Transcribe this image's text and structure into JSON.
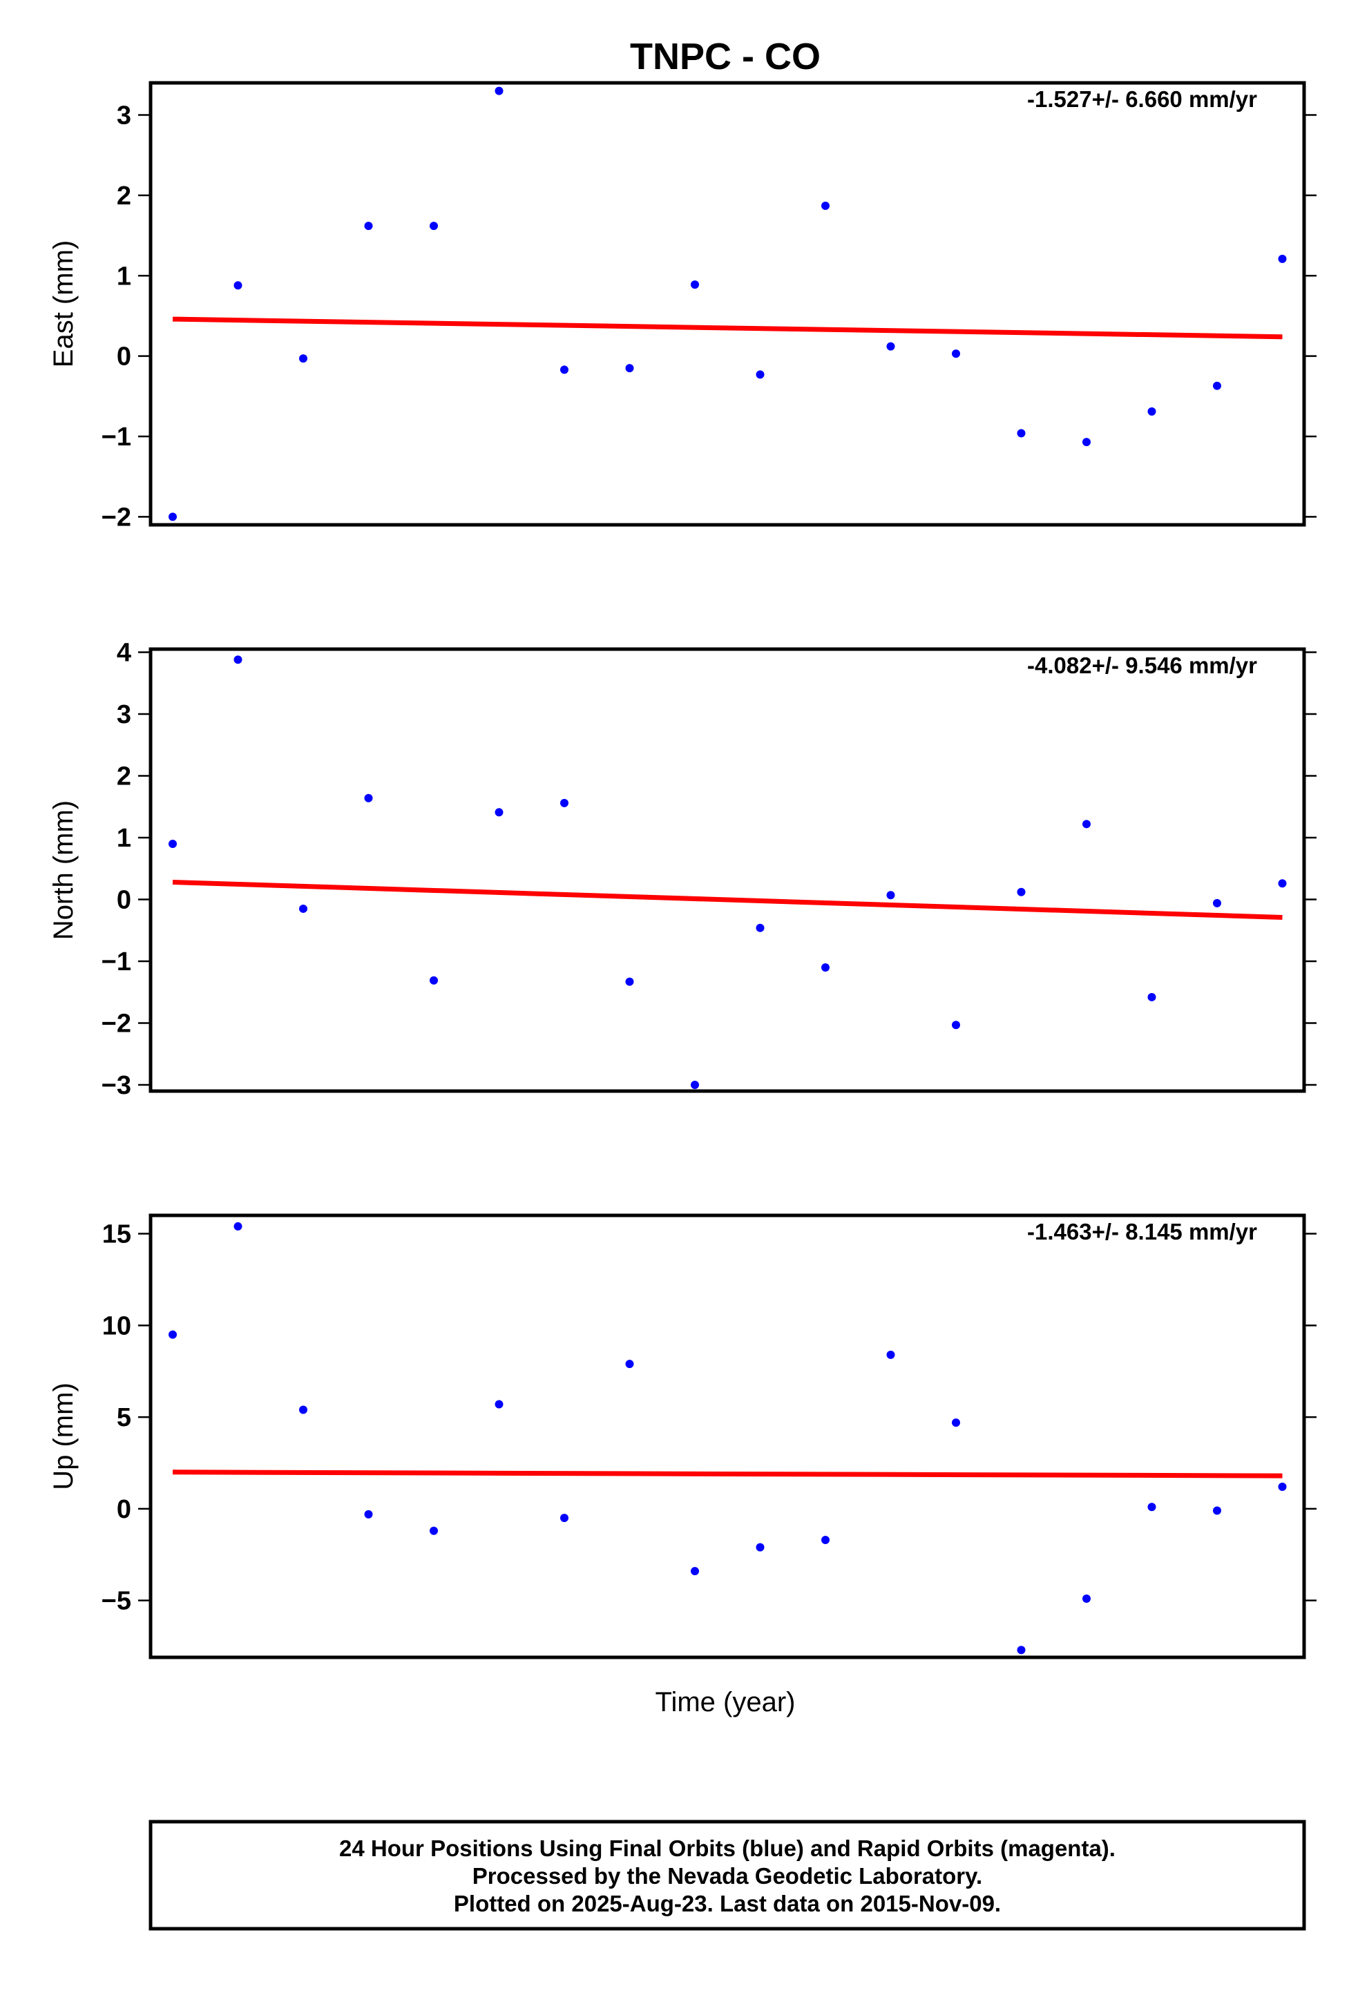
{
  "chart_data": {
    "type": "scatter",
    "title": "TNPC - CO",
    "xlabel": "Time (year)",
    "point_color": "#0000ff",
    "trend_color": "#ff0000",
    "x_index": [
      0,
      1,
      2,
      3,
      4,
      5,
      6,
      7,
      8,
      9,
      10,
      11,
      12,
      13,
      14,
      15,
      16,
      17
    ],
    "panels": [
      {
        "name": "east",
        "ylabel": "East (mm)",
        "rate_label": "-1.527+/- 6.660 mm/yr",
        "ylim": [
          -2.1,
          3.4
        ],
        "yticks": [
          -2,
          -1,
          0,
          1,
          2,
          3
        ],
        "ytick_labels": [
          "−2",
          "−1",
          "0",
          "1",
          "2",
          "3"
        ],
        "values": [
          -2.0,
          0.88,
          -0.03,
          1.62,
          1.62,
          3.3,
          -0.17,
          -0.15,
          0.89,
          -0.23,
          1.87,
          0.12,
          0.03,
          -0.96,
          -1.07,
          -0.69,
          -0.37,
          1.21
        ],
        "trend": [
          0.46,
          0.24
        ]
      },
      {
        "name": "north",
        "ylabel": "North (mm)",
        "rate_label": "-4.082+/- 9.546 mm/yr",
        "ylim": [
          -3.1,
          4.05
        ],
        "yticks": [
          -3,
          -2,
          -1,
          0,
          1,
          2,
          3,
          4
        ],
        "ytick_labels": [
          "−3",
          "−2",
          "−1",
          "0",
          "1",
          "2",
          "3",
          "4"
        ],
        "values": [
          0.9,
          3.88,
          -0.15,
          1.64,
          -1.31,
          1.41,
          1.56,
          -1.33,
          -3.0,
          -0.46,
          -1.1,
          0.07,
          -2.03,
          0.12,
          1.22,
          -1.58,
          -0.06,
          0.26
        ],
        "trend": [
          0.28,
          -0.29
        ]
      },
      {
        "name": "up",
        "ylabel": "Up (mm)",
        "rate_label": "-1.463+/- 8.145 mm/yr",
        "ylim": [
          -8.1,
          16.0
        ],
        "yticks": [
          -5,
          0,
          5,
          10,
          15
        ],
        "ytick_labels": [
          "−5",
          "0",
          "5",
          "10",
          "15"
        ],
        "values": [
          9.5,
          15.4,
          5.4,
          -0.3,
          -1.2,
          5.7,
          -0.5,
          7.9,
          -3.4,
          -2.1,
          -1.7,
          8.4,
          4.7,
          -7.7,
          -4.9,
          0.1,
          -0.1,
          1.2
        ],
        "trend": [
          2.0,
          1.8
        ]
      }
    ]
  },
  "footer": {
    "line1": "24 Hour Positions Using Final Orbits (blue) and Rapid Orbits (magenta).",
    "line2": "Processed by the Nevada Geodetic Laboratory.",
    "line3": "Plotted on 2025-Aug-23. Last data on 2015-Nov-09."
  }
}
